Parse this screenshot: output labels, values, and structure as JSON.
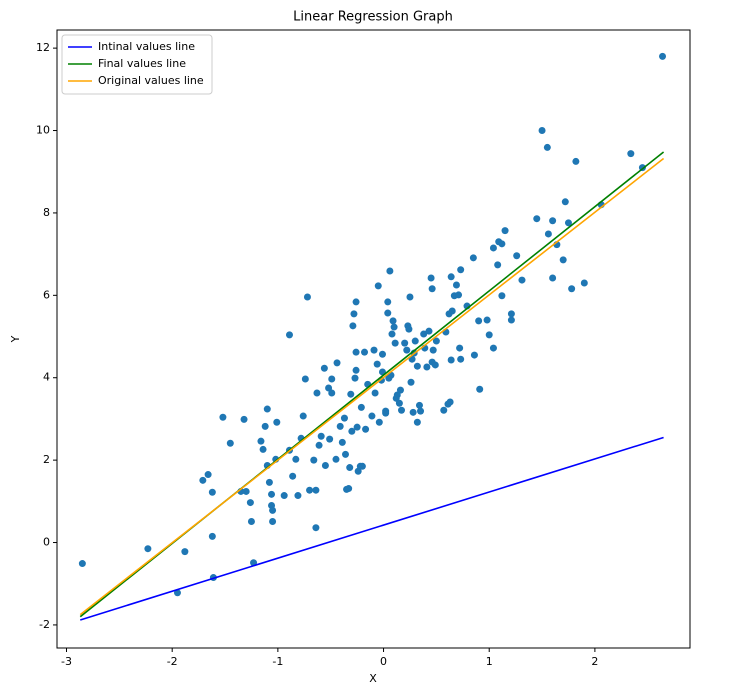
{
  "chart_data": {
    "type": "scatter",
    "title": "Linear Regression Graph",
    "xlabel": "X",
    "ylabel": "Y",
    "xlim": [
      -3.09,
      2.9
    ],
    "ylim": [
      -2.56,
      12.44
    ],
    "xticks": [
      -3,
      -2,
      -1,
      0,
      1,
      2
    ],
    "yticks": [
      -2,
      0,
      2,
      4,
      6,
      8,
      10,
      12
    ],
    "legend": "upper left",
    "series": [
      {
        "type": "scatter",
        "color": "#1f77b4",
        "x": [
          -2.85,
          -2.23,
          -1.95,
          -1.88,
          -1.61,
          -1.62,
          -1.71,
          -1.66,
          -1.62,
          -1.52,
          -1.45,
          -1.32,
          -1.35,
          -1.3,
          -1.26,
          -1.25,
          -1.23,
          -1.16,
          -1.1,
          -1.12,
          -1.14,
          -1.1,
          -1.08,
          -1.06,
          -1.06,
          -1.05,
          -1.05,
          -1.02,
          -1.01,
          -0.94,
          -0.89,
          -0.89,
          -0.86,
          -0.83,
          -0.81,
          -0.78,
          -0.76,
          -0.74,
          -0.72,
          -0.7,
          -0.66,
          -0.64,
          -0.64,
          -0.63,
          -0.61,
          -0.59,
          -0.56,
          -0.55,
          -0.52,
          -0.51,
          -0.49,
          -0.49,
          -0.45,
          -0.44,
          -0.41,
          -0.39,
          -0.37,
          -0.36,
          -0.35,
          -0.33,
          -0.32,
          -0.31,
          -0.3,
          -0.29,
          -0.28,
          -0.27,
          -0.26,
          -0.26,
          -0.26,
          -0.25,
          -0.24,
          -0.22,
          -0.21,
          -0.2,
          -0.18,
          -0.17,
          -0.15,
          -0.11,
          -0.09,
          -0.08,
          -0.06,
          -0.05,
          -0.04,
          -0.02,
          -0.01,
          -0.01,
          0.02,
          0.02,
          0.04,
          0.04,
          0.05,
          0.06,
          0.07,
          0.08,
          0.09,
          0.1,
          0.11,
          0.12,
          0.13,
          0.15,
          0.16,
          0.17,
          0.2,
          0.22,
          0.23,
          0.24,
          0.25,
          0.26,
          0.27,
          0.28,
          0.29,
          0.3,
          0.32,
          0.32,
          0.34,
          0.35,
          0.38,
          0.39,
          0.41,
          0.43,
          0.45,
          0.46,
          0.46,
          0.47,
          0.49,
          0.5,
          0.57,
          0.59,
          0.61,
          0.62,
          0.63,
          0.64,
          0.64,
          0.65,
          0.67,
          0.69,
          0.71,
          0.72,
          0.73,
          0.73,
          0.79,
          0.85,
          0.86,
          0.9,
          0.91,
          0.98,
          1.0,
          1.04,
          1.04,
          1.08,
          1.09,
          1.12,
          1.12,
          1.15,
          1.21,
          1.21,
          1.26,
          1.31,
          1.45,
          1.5,
          1.55,
          1.56,
          1.6,
          1.6,
          1.64,
          1.7,
          1.72,
          1.75,
          1.78,
          1.82,
          1.9,
          2.06,
          2.34,
          2.45,
          2.64
        ],
        "values": [
          -0.51,
          -0.15,
          -1.22,
          -0.22,
          -0.85,
          0.15,
          1.51,
          1.65,
          1.22,
          3.04,
          2.41,
          2.99,
          1.24,
          1.24,
          0.97,
          0.51,
          -0.49,
          2.46,
          3.24,
          2.82,
          2.26,
          1.87,
          1.46,
          1.17,
          0.9,
          0.51,
          0.78,
          2.02,
          2.92,
          1.14,
          5.04,
          2.24,
          1.61,
          2.02,
          1.14,
          2.53,
          3.07,
          3.97,
          5.96,
          1.27,
          2.0,
          0.36,
          1.27,
          3.63,
          2.36,
          2.58,
          4.23,
          1.87,
          3.75,
          2.51,
          3.63,
          3.97,
          2.02,
          4.36,
          2.82,
          2.43,
          3.02,
          2.14,
          1.29,
          1.31,
          1.82,
          3.6,
          2.7,
          5.26,
          5.55,
          3.99,
          5.84,
          4.62,
          4.18,
          2.8,
          1.73,
          1.85,
          3.28,
          1.85,
          4.62,
          2.75,
          3.84,
          3.07,
          4.67,
          3.63,
          4.33,
          6.23,
          2.92,
          3.94,
          4.57,
          4.14,
          3.19,
          3.14,
          5.84,
          5.57,
          3.99,
          6.59,
          4.06,
          5.06,
          5.38,
          5.23,
          4.84,
          3.5,
          3.58,
          3.38,
          3.7,
          3.21,
          4.84,
          4.67,
          5.26,
          5.18,
          5.96,
          3.89,
          4.45,
          3.16,
          4.6,
          4.89,
          2.92,
          4.28,
          3.33,
          3.19,
          5.06,
          4.72,
          4.26,
          5.13,
          6.42,
          6.16,
          4.38,
          4.67,
          4.31,
          4.89,
          3.21,
          5.11,
          3.36,
          5.55,
          3.41,
          6.45,
          4.43,
          5.62,
          5.99,
          6.25,
          6.01,
          4.72,
          6.62,
          4.45,
          5.74,
          6.91,
          4.55,
          5.38,
          3.72,
          5.4,
          5.04,
          7.15,
          4.72,
          6.74,
          7.3,
          7.25,
          5.99,
          7.57,
          5.4,
          5.55,
          6.96,
          6.37,
          7.86,
          10.0,
          9.59,
          7.49,
          6.42,
          7.81,
          7.23,
          6.86,
          8.27,
          7.76,
          6.16,
          9.25,
          6.3,
          8.2,
          9.44,
          9.1,
          11.8
        ]
      },
      {
        "type": "line",
        "name": "Intinal values line",
        "color": "#0000ff",
        "x": [
          -2.87,
          2.65
        ],
        "values": [
          -1.88,
          2.55
        ]
      },
      {
        "type": "line",
        "name": "Final values line",
        "color": "#008000",
        "x": [
          -2.87,
          2.65
        ],
        "values": [
          -1.8,
          9.48
        ]
      },
      {
        "type": "line",
        "name": "Original values line",
        "color": "#ffa500",
        "x": [
          -2.87,
          2.65
        ],
        "values": [
          -1.75,
          9.32
        ]
      }
    ]
  }
}
